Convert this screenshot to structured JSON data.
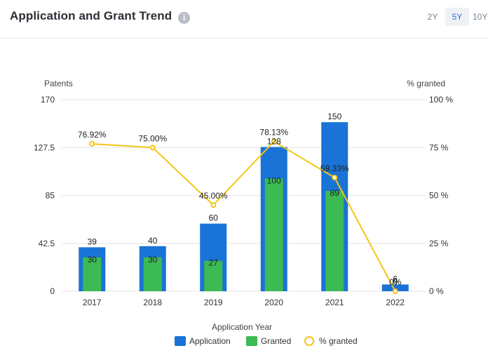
{
  "header": {
    "title": "Application and Grant Trend",
    "info_icon": "info-icon",
    "range_tabs": [
      {
        "label": "2Y",
        "active": false
      },
      {
        "label": "5Y",
        "active": true
      },
      {
        "label": "10Y",
        "active": false
      }
    ]
  },
  "colors": {
    "application": "#1a73d6",
    "granted": "#3cba54",
    "pct": "#f5c518",
    "grid": "#e6e6e6",
    "axis_text": "#333333"
  },
  "chart_data": {
    "type": "bar",
    "categories": [
      "2017",
      "2018",
      "2019",
      "2020",
      "2021",
      "2022"
    ],
    "series": [
      {
        "name": "Application",
        "type": "bar",
        "values": [
          39,
          40,
          60,
          128,
          150,
          6
        ],
        "labels": [
          "39",
          "40",
          "60",
          "128",
          "150",
          "6"
        ]
      },
      {
        "name": "Granted",
        "type": "bar",
        "values": [
          30,
          30,
          27,
          100,
          89,
          0
        ],
        "labels": [
          "30",
          "30",
          "27",
          "100",
          "89",
          "0"
        ]
      },
      {
        "name": "% granted",
        "type": "line",
        "axis": "right",
        "values": [
          76.92,
          75.0,
          45.0,
          78.13,
          59.33,
          0
        ],
        "labels": [
          "76.92%",
          "75.00%",
          "45.00%",
          "78.13%",
          "59.33%",
          "0%"
        ]
      }
    ],
    "xlabel": "Application Year",
    "ylabel": "Patents",
    "ylabel_right": "% granted",
    "ylim": [
      0,
      170
    ],
    "ylim_right": [
      0,
      100
    ],
    "yticks": [
      "0",
      "42.5",
      "85",
      "127.5",
      "170"
    ],
    "yticks_right": [
      "0 %",
      "25 %",
      "50 %",
      "75 %",
      "100 %"
    ],
    "grid": true,
    "legend": "bottom"
  }
}
